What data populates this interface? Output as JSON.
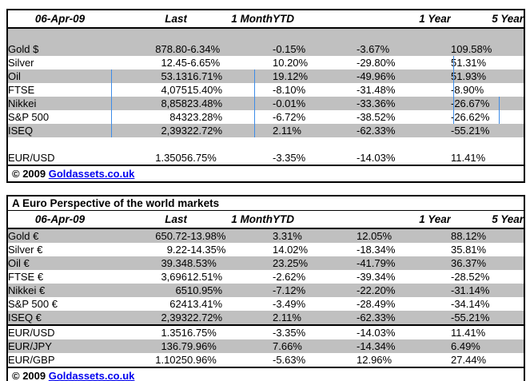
{
  "colors": {
    "negative_text": "#ff0000",
    "row_shade": "#c0c0c0",
    "link_blue": "#0000ee",
    "gridline_artifact_blue": "#3d8ce8",
    "border": "#000000"
  },
  "usd_table": {
    "date": "06-Apr-09",
    "columns": [
      "Last",
      "1 Month",
      "YTD",
      "1 Year",
      "5 Year"
    ],
    "rows": [
      {
        "label": "",
        "values": [
          "",
          "",
          "",
          "",
          ""
        ],
        "red": [
          false,
          false,
          false,
          false,
          false
        ],
        "shaded": true,
        "blank": true
      },
      {
        "label": "Gold $",
        "values": [
          "878.80",
          "-6.34%",
          "-0.15%",
          "-3.67%",
          "109.58%"
        ],
        "red": [
          false,
          true,
          true,
          true,
          false
        ],
        "shaded": true
      },
      {
        "label": "Silver",
        "values": [
          "12.45",
          "-6.65%",
          "10.20%",
          "-29.80%",
          "51.31%"
        ],
        "red": [
          false,
          true,
          false,
          true,
          false
        ],
        "shaded": false
      },
      {
        "label": "Oil",
        "values": [
          "53.13",
          "16.71%",
          "19.12%",
          "-49.96%",
          "51.93%"
        ],
        "red": [
          false,
          false,
          false,
          true,
          false
        ],
        "shaded": true
      },
      {
        "label": "FTSE",
        "values": [
          "4,075",
          "15.40%",
          "-8.10%",
          "-31.48%",
          "-8.90%"
        ],
        "red": [
          false,
          false,
          true,
          true,
          true
        ],
        "shaded": false
      },
      {
        "label": "Nikkei",
        "values": [
          "8,858",
          "23.48%",
          "-0.01%",
          "-33.36%",
          "-26.67%"
        ],
        "red": [
          false,
          false,
          true,
          true,
          true
        ],
        "shaded": true
      },
      {
        "label": "S&P 500",
        "values": [
          "843",
          "23.28%",
          "-6.72%",
          "-38.52%",
          "-26.62%"
        ],
        "red": [
          false,
          false,
          true,
          true,
          true
        ],
        "shaded": false
      },
      {
        "label": "ISEQ",
        "values": [
          "2,393",
          "22.72%",
          "2.11%",
          "-62.33%",
          "-55.21%"
        ],
        "red": [
          false,
          false,
          false,
          true,
          true
        ],
        "shaded": true
      },
      {
        "label": "",
        "values": [
          "",
          "",
          "",
          "",
          ""
        ],
        "red": [
          false,
          false,
          false,
          false,
          false
        ],
        "shaded": false,
        "blank": true
      },
      {
        "label": "EUR/USD",
        "values": [
          "1.3505",
          "6.75%",
          "-3.35%",
          "-14.03%",
          "11.41%"
        ],
        "red": [
          false,
          false,
          true,
          true,
          false
        ],
        "shaded": false
      }
    ],
    "footer": {
      "copyright": "© 2009",
      "link": "Goldassets.co.uk"
    }
  },
  "euro_table": {
    "title": "A Euro Perspective of the world markets",
    "date": "06-Apr-09",
    "columns": [
      "Last",
      "1 Month",
      "YTD",
      "1 Year",
      "5 Year"
    ],
    "rows": [
      {
        "label": "Gold €",
        "values": [
          "650.72",
          "-13.98%",
          "3.31%",
          "12.05%",
          "88.12%"
        ],
        "red": [
          false,
          true,
          false,
          false,
          false
        ],
        "shaded": true
      },
      {
        "label": "Silver €",
        "values": [
          "9.22",
          "-14.35%",
          "14.02%",
          "-18.34%",
          "35.81%"
        ],
        "red": [
          false,
          true,
          false,
          true,
          false
        ],
        "shaded": false
      },
      {
        "label": "Oil €",
        "values": [
          "39.34",
          "8.53%",
          "23.25%",
          "-41.79%",
          "36.37%"
        ],
        "red": [
          false,
          false,
          false,
          true,
          false
        ],
        "shaded": true
      },
      {
        "label": "FTSE €",
        "values": [
          "3,696",
          "12.51%",
          "-2.62%",
          "-39.34%",
          "-28.52%"
        ],
        "red": [
          false,
          false,
          true,
          true,
          true
        ],
        "shaded": false
      },
      {
        "label": "Nikkei €",
        "values": [
          "65",
          "10.95%",
          "-7.12%",
          "-22.20%",
          "-31.14%"
        ],
        "red": [
          false,
          false,
          true,
          true,
          true
        ],
        "shaded": true
      },
      {
        "label": "S&P 500 €",
        "values": [
          "624",
          "13.41%",
          "-3.49%",
          "-28.49%",
          "-34.14%"
        ],
        "red": [
          false,
          false,
          true,
          true,
          true
        ],
        "shaded": false
      },
      {
        "label": "ISEQ €",
        "values": [
          "2,393",
          "22.72%",
          "2.11%",
          "-62.33%",
          "-55.21%"
        ],
        "red": [
          false,
          false,
          false,
          true,
          true
        ],
        "shaded": true,
        "sep_below": true
      },
      {
        "label": "EUR/USD",
        "values": [
          "1.351",
          "6.75%",
          "-3.35%",
          "-14.03%",
          "11.41%"
        ],
        "red": [
          false,
          false,
          true,
          true,
          false
        ],
        "shaded": false
      },
      {
        "label": "EUR/JPY",
        "values": [
          "136.7",
          "9.96%",
          "7.66%",
          "-14.34%",
          "6.49%"
        ],
        "red": [
          false,
          false,
          false,
          true,
          false
        ],
        "shaded": true
      },
      {
        "label": "EUR/GBP",
        "values": [
          "1.1025",
          "0.96%",
          "-5.63%",
          "12.96%",
          "27.44%"
        ],
        "red": [
          false,
          false,
          false,
          false,
          false
        ],
        "shaded": false
      }
    ],
    "footer": {
      "copyright": "© 2009",
      "link": "Goldassets.co.uk"
    }
  }
}
